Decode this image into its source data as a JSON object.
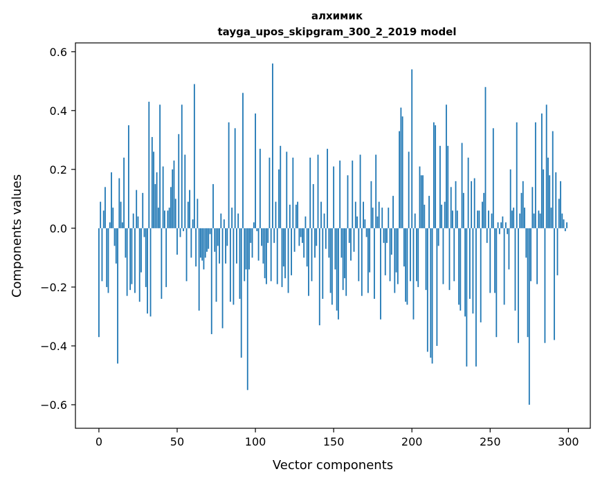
{
  "chart_data": {
    "type": "bar",
    "title": "алхимик",
    "subtitle": "tayga_upos_skipgram_300_2_2019 model",
    "xlabel": "Vector components",
    "ylabel": "Components values",
    "xlim": [
      -15,
      314
    ],
    "ylim": [
      -0.68,
      0.63
    ],
    "xticks": [
      0,
      50,
      100,
      150,
      200,
      250,
      300
    ],
    "xtick_labels": [
      "0",
      "50",
      "100",
      "150",
      "200",
      "250",
      "300"
    ],
    "yticks": [
      -0.6,
      -0.4,
      -0.2,
      0.0,
      0.2,
      0.4,
      0.6
    ],
    "ytick_labels": [
      "−0.6",
      "−0.4",
      "−0.2",
      "0.0",
      "0.2",
      "0.4",
      "0.6"
    ],
    "grid": false,
    "legend": "none",
    "bar_color": "#1f77b4",
    "values": [
      -0.37,
      0.09,
      -0.18,
      0.06,
      0.14,
      -0.2,
      -0.22,
      0.02,
      0.19,
      0.07,
      -0.06,
      -0.12,
      -0.46,
      0.17,
      0.09,
      0.02,
      0.24,
      -0.1,
      -0.23,
      0.35,
      -0.21,
      -0.19,
      0.05,
      -0.22,
      0.13,
      0.04,
      -0.25,
      -0.15,
      0.12,
      -0.03,
      -0.2,
      -0.29,
      0.43,
      -0.3,
      0.31,
      0.26,
      0.15,
      0.19,
      0.07,
      0.42,
      -0.24,
      0.21,
      0.06,
      -0.2,
      0.06,
      0.07,
      0.14,
      0.2,
      0.23,
      0.1,
      -0.09,
      0.32,
      -0.03,
      0.42,
      -0.01,
      0.25,
      -0.18,
      0.09,
      0.13,
      -0.1,
      0.03,
      0.49,
      -0.13,
      0.1,
      -0.28,
      -0.1,
      -0.11,
      -0.14,
      -0.1,
      -0.08,
      -0.07,
      -0.02,
      -0.36,
      0.15,
      -0.08,
      -0.25,
      -0.06,
      -0.12,
      0.05,
      -0.34,
      0.03,
      -0.12,
      -0.06,
      0.36,
      -0.25,
      0.07,
      -0.26,
      0.34,
      -0.12,
      0.05,
      -0.24,
      -0.44,
      0.46,
      -0.18,
      -0.14,
      -0.55,
      -0.14,
      -0.05,
      -0.1,
      0.02,
      0.39,
      -0.01,
      -0.11,
      0.27,
      -0.06,
      -0.12,
      -0.17,
      -0.19,
      -0.05,
      0.24,
      -0.18,
      0.56,
      -0.05,
      0.09,
      -0.19,
      0.2,
      0.28,
      -0.2,
      -0.13,
      -0.17,
      0.26,
      -0.22,
      0.08,
      -0.16,
      0.24,
      -0.08,
      0.08,
      0.09,
      -0.06,
      -0.03,
      -0.05,
      -0.1,
      0.04,
      -0.13,
      -0.23,
      0.24,
      -0.18,
      0.15,
      -0.1,
      -0.06,
      0.25,
      -0.33,
      0.09,
      -0.24,
      0.05,
      -0.07,
      0.27,
      -0.1,
      -0.22,
      -0.26,
      0.21,
      -0.14,
      -0.28,
      -0.31,
      0.23,
      -0.1,
      -0.21,
      -0.17,
      -0.23,
      0.18,
      -0.05,
      -0.11,
      0.23,
      -0.08,
      0.09,
      0.04,
      -0.18,
      0.25,
      -0.23,
      0.09,
      0.03,
      -0.03,
      -0.22,
      -0.15,
      0.16,
      0.07,
      -0.24,
      0.25,
      0.04,
      0.09,
      -0.31,
      0.07,
      -0.05,
      -0.16,
      -0.05,
      0.07,
      -0.18,
      -0.09,
      0.11,
      -0.22,
      -0.15,
      -0.19,
      0.33,
      0.41,
      0.38,
      -0.13,
      -0.25,
      -0.26,
      0.26,
      -0.18,
      0.54,
      -0.31,
      0.05,
      -0.18,
      -0.2,
      0.21,
      0.18,
      0.18,
      0.08,
      -0.21,
      -0.42,
      0.11,
      -0.44,
      -0.46,
      0.36,
      0.35,
      -0.4,
      -0.06,
      0.28,
      0.08,
      -0.19,
      0.09,
      0.42,
      0.28,
      -0.21,
      0.14,
      0.06,
      -0.18,
      0.16,
      0.06,
      -0.26,
      -0.28,
      0.29,
      0.12,
      -0.3,
      -0.47,
      0.24,
      -0.24,
      0.16,
      -0.29,
      0.17,
      -0.47,
      0.06,
      0.06,
      -0.32,
      0.09,
      0.12,
      0.48,
      -0.05,
      0.06,
      -0.22,
      0.05,
      0.34,
      -0.22,
      -0.37,
      0.02,
      -0.02,
      0.02,
      0.04,
      -0.26,
      0.02,
      -0.02,
      -0.14,
      0.2,
      0.06,
      0.07,
      -0.28,
      0.36,
      -0.39,
      0.05,
      0.12,
      0.16,
      0.07,
      -0.1,
      -0.37,
      -0.6,
      -0.18,
      0.14,
      0.05,
      0.36,
      -0.19,
      0.06,
      0.05,
      0.39,
      0.2,
      -0.39,
      0.42,
      0.24,
      0.18,
      0.07,
      0.33,
      -0.38,
      0.19,
      -0.16,
      0.1,
      0.16,
      0.05,
      0.03,
      -0.01,
      0.02
    ]
  }
}
